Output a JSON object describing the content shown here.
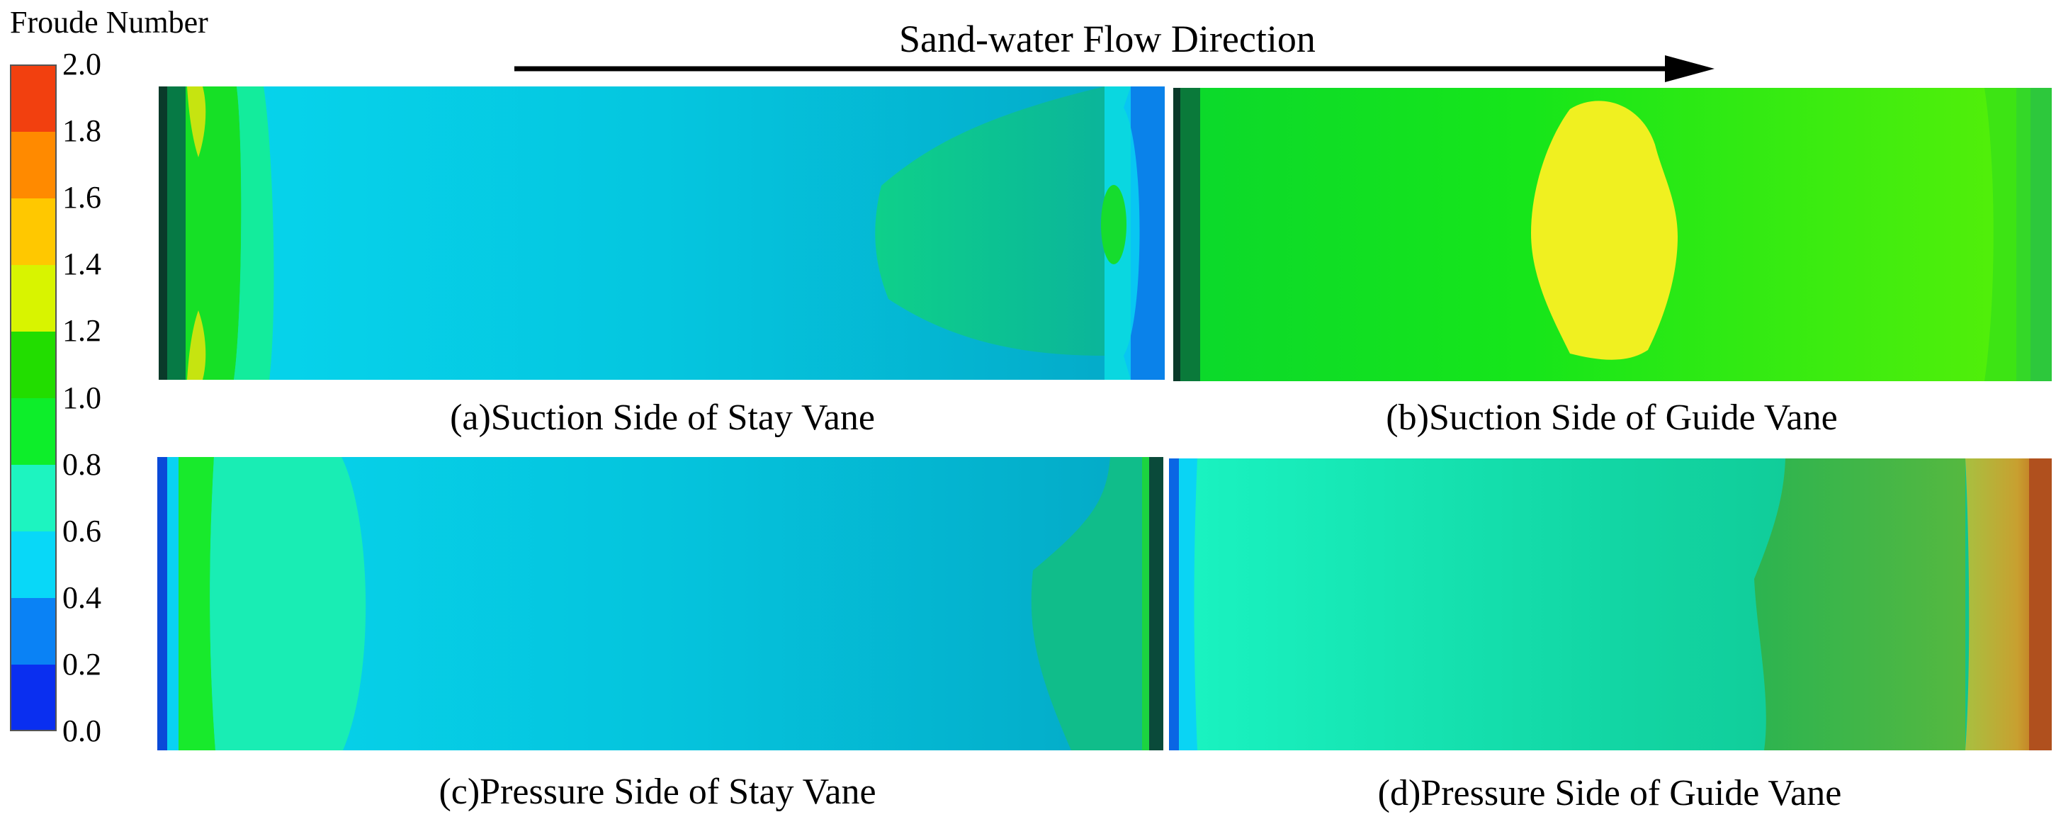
{
  "legend": {
    "title": "Froude Number",
    "ticks": [
      "0.0",
      "0.2",
      "0.4",
      "0.6",
      "0.8",
      "1.0",
      "1.2",
      "1.4",
      "1.6",
      "1.8",
      "2.0"
    ],
    "colors": [
      "#0a2ff0",
      "#0a82f5",
      "#08d8f8",
      "#1df4c0",
      "#0dee2a",
      "#22dd00",
      "#d8f400",
      "#ffc800",
      "#ff8a00",
      "#f2400f"
    ]
  },
  "flow": {
    "label": "Sand-water Flow Direction"
  },
  "panels": [
    {
      "caption": "(a)Suction Side of Stay Vane"
    },
    {
      "caption": "(b)Suction Side of Guide Vane"
    },
    {
      "caption": "(c)Pressure Side of Stay Vane"
    },
    {
      "caption": "(d)Pressure Side of Guide Vane"
    }
  ]
}
